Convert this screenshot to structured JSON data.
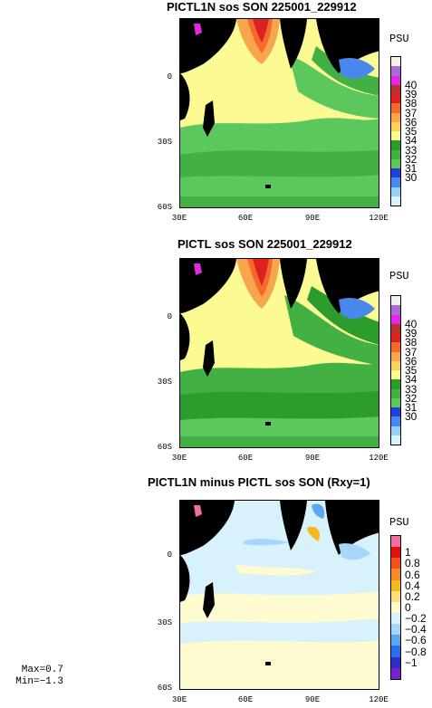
{
  "panels": [
    {
      "title": "PICTL1N sos SON 225001_229912",
      "unit": "PSU",
      "lat_labels": [
        "0",
        "30S",
        "60S"
      ],
      "lon_labels": [
        "30E",
        "60E",
        "90E",
        "120E"
      ],
      "levels": [
        "40",
        "39",
        "38",
        "37",
        "36",
        "35",
        "34",
        "33",
        "32",
        "31",
        "30"
      ],
      "colors": [
        "#f6f0ea",
        "#a96cd2",
        "#e029e0",
        "#b83232",
        "#dd2020",
        "#f46a2a",
        "#f7a64d",
        "#fbd35c",
        "#fbfa93",
        "#2c9c2c",
        "#43b043",
        "#5cc75c",
        "#2341d6",
        "#4a88ee",
        "#9ad0f4",
        "#d9f4fb"
      ]
    },
    {
      "title": "PICTL sos SON 225001_229912",
      "unit": "PSU",
      "lat_labels": [
        "0",
        "30S",
        "60S"
      ],
      "lon_labels": [
        "30E",
        "60E",
        "90E",
        "120E"
      ],
      "levels": [
        "40",
        "39",
        "38",
        "37",
        "36",
        "35",
        "34",
        "33",
        "32",
        "31",
        "30"
      ],
      "colors": [
        "#f6f0ea",
        "#a96cd2",
        "#e029e0",
        "#b83232",
        "#dd2020",
        "#f46a2a",
        "#f7a64d",
        "#fbd35c",
        "#fbfa93",
        "#2c9c2c",
        "#43b043",
        "#5cc75c",
        "#2341d6",
        "#4a88ee",
        "#9ad0f4",
        "#d9f4fb"
      ]
    },
    {
      "title": "PICTL1N minus PICTL sos SON (Rxy=1)",
      "unit": "PSU",
      "lat_labels": [
        "0",
        "30S",
        "60S"
      ],
      "lon_labels": [
        "30E",
        "60E",
        "90E",
        "120E"
      ],
      "levels": [
        "1",
        "0.8",
        "0.6",
        "0.4",
        "0.2",
        "0",
        "−0.2",
        "−0.4",
        "−0.6",
        "−0.8",
        "−1"
      ],
      "colors": [
        "#f06ea0",
        "#e01010",
        "#f45020",
        "#f48a2a",
        "#f8b820",
        "#fde07a",
        "#fffbd0",
        "#d8f2fb",
        "#a6d6f8",
        "#5ca8f0",
        "#2b6ee8",
        "#2a30c8",
        "#7a20d0"
      ]
    }
  ],
  "stats": {
    "max": "Max=0.7",
    "min": "Min=−1.3"
  }
}
